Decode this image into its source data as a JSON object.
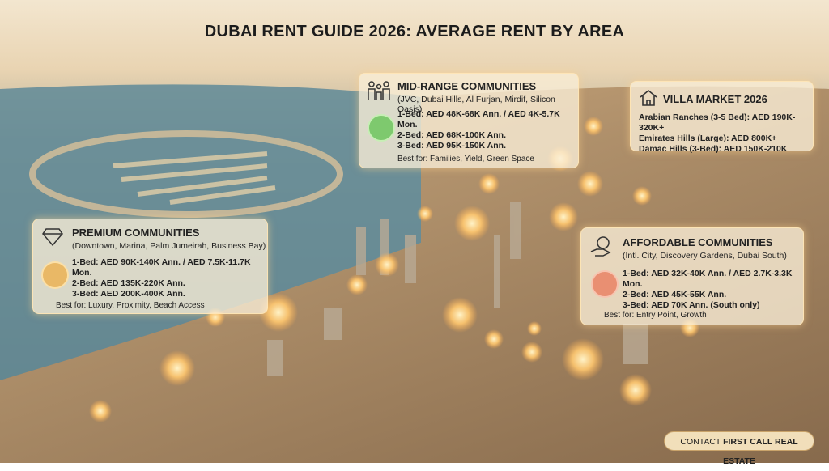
{
  "header": {
    "title": "DUBAI RENT GUIDE 2026: AVERAGE RENT BY AREA"
  },
  "cards": [
    {
      "title": "MID-RANGE COMMUNITIES",
      "subtitle": "(JVC, Dubai Hills, Al Furjan, Mirdif, Silicon Oasis)",
      "lines": [
        "1-Bed: AED 48K-68K Ann. / AED 4K-5.7K Mon.",
        "2-Bed: AED 68K-100K Ann.",
        "3-Bed: AED 95K-150K Ann."
      ],
      "footer": "Best for: Families, Yield, Green Space"
    },
    {
      "title": "VILLA MARKET 2026",
      "lines": [
        "Arabian Ranches (3-5 Bed): AED 190K-320K+",
        "Emirates Hills (Large): AED 800K+",
        "Damac Hills (3-Bed): AED 150K-210K"
      ]
    },
    {
      "title": "PREMIUM COMMUNITIES",
      "subtitle": "(Downtown, Marina, Palm Jumeirah, Business Bay)",
      "lines": [
        "1-Bed: AED 90K-140K Ann. / AED 7.5K-11.7K Mon.",
        "2-Bed: AED 135K-220K Ann.",
        "3-Bed: AED 200K-400K Ann."
      ],
      "footer": "Best for: Luxury, Proximity, Beach Access"
    },
    {
      "title": "AFFORDABLE COMMUNITIES",
      "subtitle": "(Intl. City, Discovery Gardens, Dubai South)",
      "lines": [
        "1-Bed: AED 32K-40K Ann. / AED 2.7K-3.3K Mon.",
        "2-Bed: AED 45K-55K Ann.",
        "3-Bed: AED 70K Ann. (South only)"
      ],
      "footer": "Best for: Entry Point, Growth"
    }
  ],
  "contact": {
    "prefix": "CONTACT",
    "name": "FIRST CALL REAL ESTATE"
  }
}
